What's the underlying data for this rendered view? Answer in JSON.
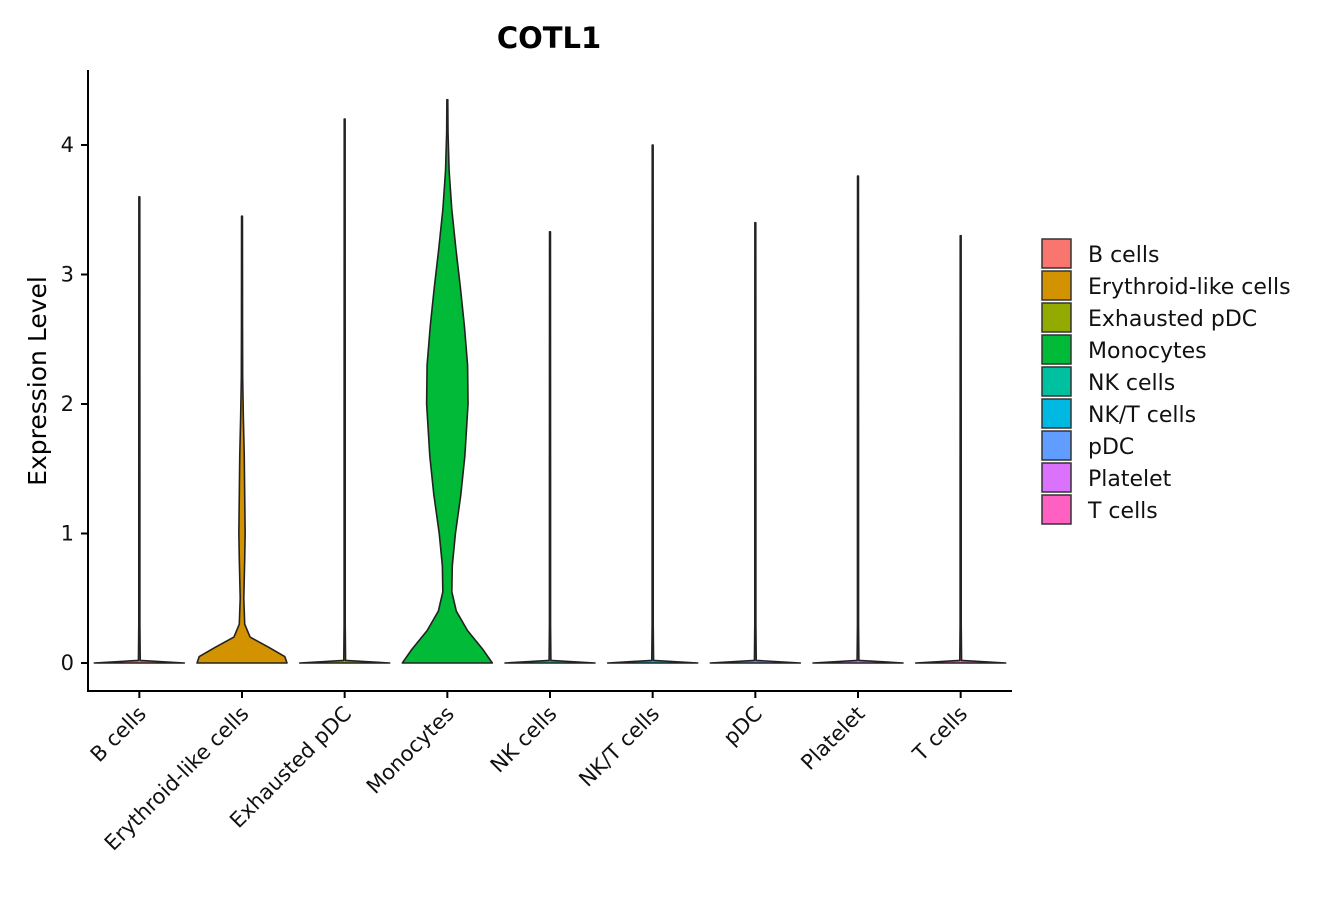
{
  "chart_data": {
    "type": "violin",
    "title": "COTL1",
    "xlabel": "",
    "ylabel": "Expression Level",
    "ylim": [
      -0.2,
      4.6
    ],
    "yticks": [
      0,
      1,
      2,
      3,
      4
    ],
    "categories": [
      "B cells",
      "Erythroid-like cells",
      "Exhausted pDC",
      "Monocytes",
      "NK cells",
      "NK/T cells",
      "pDC",
      "Platelet",
      "T cells"
    ],
    "colors": [
      "#F8766D",
      "#D39200",
      "#93AA00",
      "#00BA38",
      "#00C19F",
      "#00B9E3",
      "#619CFF",
      "#DB72FB",
      "#FF61C3"
    ],
    "legend_position": "right",
    "series": [
      {
        "category": "B cells",
        "max": 3.6,
        "density": [
          [
            0,
            1.0
          ],
          [
            0.02,
            0.02
          ],
          [
            0.3,
            0.012
          ],
          [
            1.5,
            0.012
          ],
          [
            3.6,
            0.01
          ]
        ]
      },
      {
        "category": "Erythroid-like cells",
        "max": 3.45,
        "density": [
          [
            0,
            1.0
          ],
          [
            0.05,
            0.95
          ],
          [
            0.12,
            0.6
          ],
          [
            0.2,
            0.18
          ],
          [
            0.3,
            0.06
          ],
          [
            0.5,
            0.04
          ],
          [
            0.8,
            0.06
          ],
          [
            1.0,
            0.07
          ],
          [
            1.3,
            0.06
          ],
          [
            1.6,
            0.05
          ],
          [
            1.9,
            0.03
          ],
          [
            2.2,
            0.015
          ],
          [
            2.6,
            0.012
          ],
          [
            3.45,
            0.01
          ]
        ]
      },
      {
        "category": "Exhausted pDC",
        "max": 4.2,
        "density": [
          [
            0,
            1.0
          ],
          [
            0.02,
            0.02
          ],
          [
            0.3,
            0.012
          ],
          [
            2.0,
            0.012
          ],
          [
            4.2,
            0.01
          ]
        ]
      },
      {
        "category": "Monocytes",
        "max": 4.35,
        "density": [
          [
            0,
            1.0
          ],
          [
            0.1,
            0.8
          ],
          [
            0.25,
            0.45
          ],
          [
            0.4,
            0.2
          ],
          [
            0.55,
            0.1
          ],
          [
            0.75,
            0.11
          ],
          [
            1.0,
            0.18
          ],
          [
            1.3,
            0.3
          ],
          [
            1.6,
            0.39
          ],
          [
            2.0,
            0.46
          ],
          [
            2.3,
            0.45
          ],
          [
            2.6,
            0.38
          ],
          [
            2.9,
            0.29
          ],
          [
            3.2,
            0.19
          ],
          [
            3.5,
            0.1
          ],
          [
            3.8,
            0.04
          ],
          [
            4.1,
            0.015
          ],
          [
            4.35,
            0.01
          ]
        ]
      },
      {
        "category": "NK cells",
        "max": 3.33,
        "density": [
          [
            0,
            1.0
          ],
          [
            0.02,
            0.02
          ],
          [
            0.3,
            0.012
          ],
          [
            1.5,
            0.012
          ],
          [
            3.33,
            0.01
          ]
        ]
      },
      {
        "category": "NK/T cells",
        "max": 4.0,
        "density": [
          [
            0,
            1.0
          ],
          [
            0.02,
            0.02
          ],
          [
            0.3,
            0.012
          ],
          [
            2.0,
            0.012
          ],
          [
            4.0,
            0.01
          ]
        ]
      },
      {
        "category": "pDC",
        "max": 3.4,
        "density": [
          [
            0,
            1.0
          ],
          [
            0.02,
            0.02
          ],
          [
            0.3,
            0.012
          ],
          [
            1.5,
            0.012
          ],
          [
            3.4,
            0.01
          ]
        ]
      },
      {
        "category": "Platelet",
        "max": 3.76,
        "density": [
          [
            0,
            1.0
          ],
          [
            0.02,
            0.02
          ],
          [
            0.3,
            0.012
          ],
          [
            1.8,
            0.012
          ],
          [
            3.76,
            0.01
          ]
        ]
      },
      {
        "category": "T cells",
        "max": 3.3,
        "density": [
          [
            0,
            1.0
          ],
          [
            0.02,
            0.02
          ],
          [
            0.3,
            0.012
          ],
          [
            1.5,
            0.012
          ],
          [
            3.3,
            0.01
          ]
        ]
      }
    ]
  }
}
